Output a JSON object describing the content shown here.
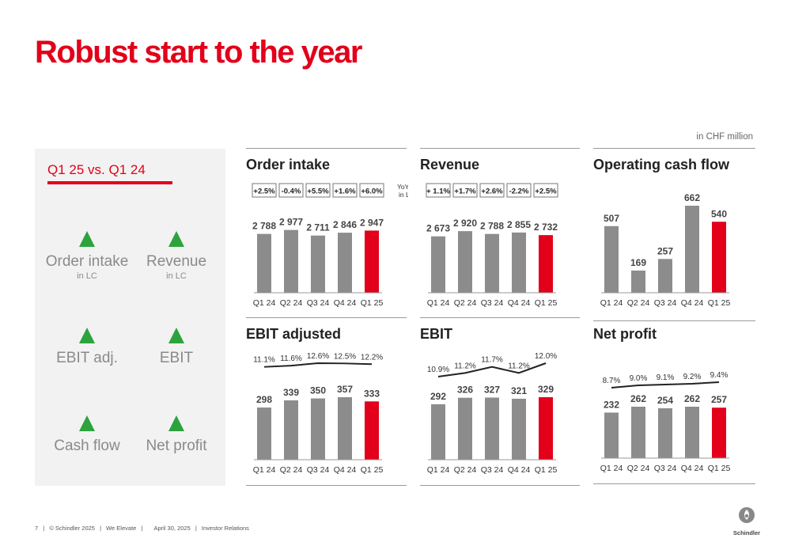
{
  "title": "Robust start to the year",
  "unit_note": "in CHF million",
  "left_panel": {
    "heading": "Q1 25 vs. Q1 24",
    "kpis": [
      {
        "label": "Order intake",
        "sub": "in LC"
      },
      {
        "label": "Revenue",
        "sub": "in LC"
      },
      {
        "label": "EBIT adj.",
        "sub": ""
      },
      {
        "label": "EBIT",
        "sub": ""
      },
      {
        "label": "Cash flow",
        "sub": ""
      },
      {
        "label": "Net profit",
        "sub": ""
      }
    ]
  },
  "footer": {
    "page": "7",
    "copyright": "© Schindler 2025",
    "tagline": "We Elevate",
    "date": "April 30, 2025",
    "department": "Investor Relations"
  },
  "logo_text": "Schindler",
  "colors": {
    "accent": "#e2001a",
    "bar": "#8c8c8c",
    "up": "#2ca33d"
  },
  "chart_data": [
    {
      "type": "bar",
      "title": "Order intake",
      "categories": [
        "Q1 24",
        "Q2 24",
        "Q3 24",
        "Q4 24",
        "Q1 25"
      ],
      "values": [
        2788,
        2977,
        2711,
        2846,
        2947
      ],
      "value_labels": [
        "2 788",
        "2 977",
        "2 711",
        "2 846",
        "2 947"
      ],
      "yoy_growth": [
        "+2.5%",
        "-0.4%",
        "+5.5%",
        "+1.6%",
        "+6.0%"
      ],
      "yoy_label": [
        "YoY growth",
        "in LC"
      ],
      "highlight_index": 4
    },
    {
      "type": "bar",
      "title": "Revenue",
      "categories": [
        "Q1 24",
        "Q2 24",
        "Q3 24",
        "Q4 24",
        "Q1 25"
      ],
      "values": [
        2673,
        2920,
        2788,
        2855,
        2732
      ],
      "value_labels": [
        "2 673",
        "2 920",
        "2 788",
        "2 855",
        "2 732"
      ],
      "yoy_growth": [
        "+ 1.1%",
        "+1.7%",
        "+2.6%",
        "-2.2%",
        "+2.5%"
      ],
      "highlight_index": 4
    },
    {
      "type": "bar",
      "title": "Operating cash flow",
      "categories": [
        "Q1 24",
        "Q2 24",
        "Q3 24",
        "Q4 24",
        "Q1 25"
      ],
      "values": [
        507,
        169,
        257,
        662,
        540
      ],
      "value_labels": [
        "507",
        "169",
        "257",
        "662",
        "540"
      ],
      "highlight_index": 4
    },
    {
      "type": "bar",
      "title": "EBIT adjusted",
      "categories": [
        "Q1 24",
        "Q2 24",
        "Q3 24",
        "Q4 24",
        "Q1 25"
      ],
      "values": [
        298,
        339,
        350,
        357,
        333
      ],
      "value_labels": [
        "298",
        "339",
        "350",
        "357",
        "333"
      ],
      "margin": [
        11.1,
        11.6,
        12.6,
        12.5,
        12.2
      ],
      "margin_labels": [
        "11.1%",
        "11.6%",
        "12.6%",
        "12.5%",
        "12.2%"
      ],
      "highlight_index": 4
    },
    {
      "type": "bar",
      "title": "EBIT",
      "categories": [
        "Q1 24",
        "Q2 24",
        "Q3 24",
        "Q4 24",
        "Q1 25"
      ],
      "values": [
        292,
        326,
        327,
        321,
        329
      ],
      "value_labels": [
        "292",
        "326",
        "327",
        "321",
        "329"
      ],
      "margin": [
        10.9,
        11.2,
        11.7,
        11.2,
        12.0
      ],
      "margin_labels": [
        "10.9%",
        "11.2%",
        "11.7%",
        "11.2%",
        "12.0%"
      ],
      "highlight_index": 4
    },
    {
      "type": "bar",
      "title": "Net profit",
      "categories": [
        "Q1 24",
        "Q2 24",
        "Q3 24",
        "Q4 24",
        "Q1 25"
      ],
      "values": [
        232,
        262,
        254,
        262,
        257
      ],
      "value_labels": [
        "232",
        "262",
        "254",
        "262",
        "257"
      ],
      "margin": [
        8.7,
        9.0,
        9.1,
        9.2,
        9.4
      ],
      "margin_labels": [
        "8.7%",
        "9.0%",
        "9.1%",
        "9.2%",
        "9.4%"
      ],
      "highlight_index": 4
    }
  ]
}
